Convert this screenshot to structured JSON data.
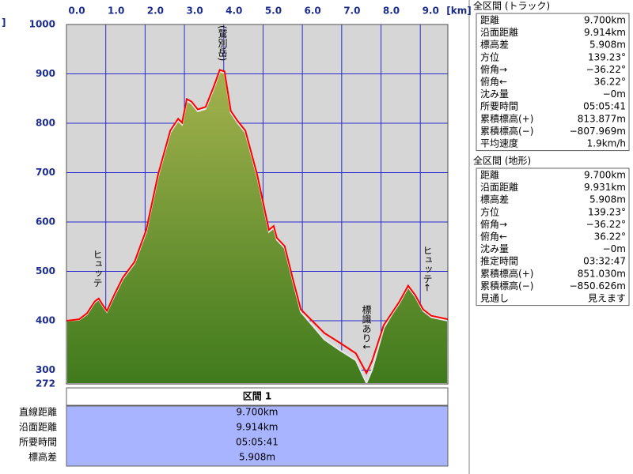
{
  "chart_data": {
    "type": "area",
    "x_unit": "[km]",
    "y_unit": "]",
    "x": [
      0,
      0.32,
      0.52,
      0.72,
      0.82,
      0.93,
      1.03,
      1.23,
      1.43,
      1.73,
      2.03,
      2.33,
      2.64,
      2.84,
      2.94,
      3.06,
      3.18,
      3.34,
      3.54,
      3.74,
      3.9,
      4.02,
      4.18,
      4.35,
      4.55,
      4.85,
      5.15,
      5.27,
      5.35,
      5.55,
      5.75,
      5.96,
      6.26,
      6.56,
      6.96,
      7.36,
      7.63,
      7.77,
      8.07,
      8.27,
      8.47,
      8.69,
      8.87,
      9.07,
      9.28,
      9.7
    ],
    "xlim": [
      0,
      9.7
    ],
    "xticks": [
      {
        "value": 0,
        "label": "0.0"
      },
      {
        "value": 1,
        "label": "1.0"
      },
      {
        "value": 2,
        "label": "2.0"
      },
      {
        "value": 3,
        "label": "3.0"
      },
      {
        "value": 4,
        "label": "4.0"
      },
      {
        "value": 5,
        "label": "5.0"
      },
      {
        "value": 6,
        "label": "6.0"
      },
      {
        "value": 7,
        "label": "7.0"
      },
      {
        "value": 8,
        "label": "8.0"
      },
      {
        "value": 9,
        "label": "9.0"
      }
    ],
    "ylim": [
      272,
      1000
    ],
    "yticks": [
      272,
      300,
      400,
      500,
      600,
      700,
      800,
      900,
      1000
    ],
    "grid": true,
    "series": [
      {
        "type": "area",
        "color": "#3f7a1c",
        "values": [
          400,
          402,
          413,
          437,
          443,
          429,
          418,
          452,
          484,
          516,
          580,
          692,
          781,
          805,
          797,
          845,
          840,
          824,
          829,
          869,
          905,
          902,
          821,
          801,
          781,
          692,
          580,
          588,
          564,
          547,
          483,
          418,
          390,
          362,
          340,
          320,
          274,
          300,
          385,
          412,
          436,
          468,
          449,
          420,
          407,
          400
        ]
      },
      {
        "type": "line",
        "color": "#ff0000",
        "values": [
          400,
          403,
          415,
          439,
          445,
          431,
          420,
          455,
          487,
          519,
          584,
          696,
          785,
          809,
          801,
          849,
          844,
          828,
          833,
          873,
          908,
          905,
          825,
          805,
          785,
          696,
          584,
          592,
          568,
          551,
          487,
          423,
          399,
          375,
          355,
          334,
          294,
          318,
          391,
          415,
          439,
          471,
          452,
          423,
          410,
          403
        ]
      }
    ],
    "annotations": [
      "ヒュッテ",
      "(鷲別岳)",
      "標識あり↓",
      "ヒュッテ←"
    ]
  },
  "section": {
    "title": "区間 1",
    "rows": [
      [
        "直線距離",
        "9.700km"
      ],
      [
        "沿面距離",
        "9.914km"
      ],
      [
        "所要時間",
        "05:05:41"
      ],
      [
        "標高差",
        "5.908m"
      ]
    ]
  },
  "panels": [
    {
      "title": "全区間 (トラック)",
      "rows": [
        [
          "距離",
          "9.700km"
        ],
        [
          "沿面距離",
          "9.914km"
        ],
        [
          "標高差",
          "5.908m"
        ],
        [
          "方位",
          "139.23°"
        ],
        [
          "俯角→",
          "−36.22°"
        ],
        [
          "俯角←",
          "36.22°"
        ],
        [
          "沈み量",
          "−0m"
        ],
        [
          "所要時間",
          "05:05:41"
        ],
        [
          "累積標高(+)",
          "813.877m"
        ],
        [
          "累積標高(−)",
          "−807.969m"
        ],
        [
          "平均速度",
          "1.9km/h"
        ]
      ]
    },
    {
      "title": "全区間 (地形)",
      "rows": [
        [
          "距離",
          "9.700km"
        ],
        [
          "沿面距離",
          "9.931km"
        ],
        [
          "標高差",
          "5.908m"
        ],
        [
          "方位",
          "139.23°"
        ],
        [
          "俯角→",
          "−36.22°"
        ],
        [
          "俯角←",
          "36.22°"
        ],
        [
          "沈み量",
          "−0m"
        ],
        [
          "推定時間",
          "03:32:47"
        ],
        [
          "累積標高(+)",
          "851.030m"
        ],
        [
          "累積標高(−)",
          "−850.626m"
        ],
        [
          "見通し",
          "見えます"
        ]
      ]
    }
  ]
}
